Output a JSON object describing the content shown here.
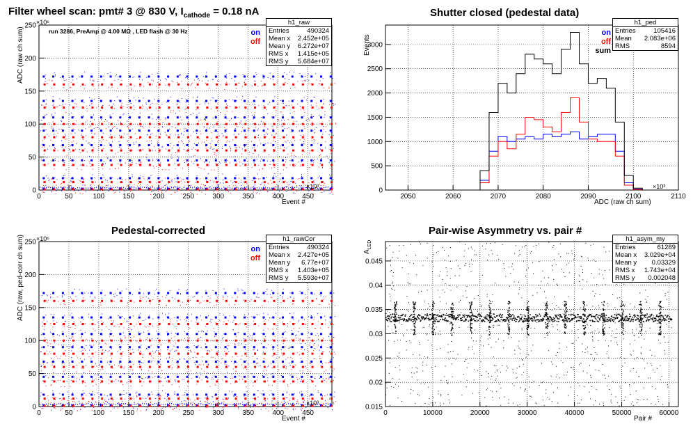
{
  "chart_data": [
    {
      "type": "scatter",
      "title": "Filter wheel scan: pmt#   3 @   830 V, I",
      "title_sub": "cathode",
      "title_tail": "  = 0.18 nA",
      "note": "run 3286, PreAmp @ 4.00 MΩ , LED flash @   30 Hz",
      "xlabel": "Event #",
      "ylabel": "ADC (raw ch sum)",
      "x_exponent": "×10³",
      "y_exponent": "×10⁶",
      "xlim": [
        0,
        490
      ],
      "ylim": [
        0,
        250
      ],
      "x_ticks": [
        "0",
        "50",
        "100",
        "150",
        "200",
        "250",
        "300",
        "350",
        "400",
        "450"
      ],
      "y_ticks": [
        "0",
        "50",
        "100",
        "150",
        "200",
        "250"
      ],
      "legend": [
        {
          "label": "on",
          "color": "#0000ff"
        },
        {
          "label": "off",
          "color": "#ff0000"
        }
      ],
      "series": [
        {
          "name": "on",
          "color": "#0000ff",
          "levels": [
            172,
            135,
            110,
            90,
            68,
            45,
            18,
            2
          ]
        },
        {
          "name": "off",
          "color": "#ff0000",
          "levels": [
            160,
            125,
            100,
            80,
            60,
            38,
            12,
            1
          ]
        }
      ],
      "stats": {
        "name": "h1_raw",
        "rows": [
          [
            "Entries",
            "490324"
          ],
          [
            "Mean x",
            "2.452e+05"
          ],
          [
            "Mean y",
            "6.272e+07"
          ],
          [
            "RMS x",
            "1.415e+05"
          ],
          [
            "RMS y",
            "5.684e+07"
          ]
        ]
      }
    },
    {
      "type": "line",
      "title": "Shutter closed (pedestal data)",
      "xlabel": "ADC (raw ch sum)",
      "ylabel": "Events",
      "x_exponent": "×10³",
      "xlim": [
        2045,
        2110
      ],
      "ylim": [
        0,
        3400
      ],
      "x_ticks": [
        "2050",
        "2060",
        "2070",
        "2080",
        "2090",
        "2100",
        "2110"
      ],
      "y_ticks": [
        "0",
        "500",
        "1000",
        "1500",
        "2000",
        "2500",
        "3000"
      ],
      "legend": [
        {
          "label": "on",
          "color": "#0000ff"
        },
        {
          "label": "off",
          "color": "#ff0000"
        },
        {
          "label": "sum",
          "color": "#000000"
        }
      ],
      "x": [
        2064,
        2066,
        2068,
        2070,
        2072,
        2074,
        2076,
        2078,
        2080,
        2082,
        2084,
        2086,
        2088,
        2090,
        2092,
        2094,
        2096,
        2098,
        2100,
        2102
      ],
      "series": [
        {
          "name": "sum",
          "color": "#000000",
          "values": [
            0,
            400,
            1600,
            2200,
            2000,
            2400,
            2800,
            2700,
            2600,
            2400,
            2900,
            3250,
            2600,
            2200,
            2300,
            2100,
            1400,
            300,
            40,
            0
          ]
        },
        {
          "name": "on",
          "color": "#0000ff",
          "values": [
            0,
            200,
            800,
            1100,
            1000,
            1050,
            1100,
            1050,
            1150,
            1100,
            1150,
            1200,
            1050,
            1100,
            1150,
            1150,
            800,
            150,
            20,
            0
          ]
        },
        {
          "name": "off",
          "color": "#ff0000",
          "values": [
            0,
            150,
            700,
            1000,
            850,
            1150,
            1500,
            1450,
            1300,
            1200,
            1600,
            1900,
            1400,
            1050,
            1000,
            1000,
            700,
            100,
            10,
            0
          ]
        }
      ],
      "stats": {
        "name": "h1_ped",
        "rows": [
          [
            "Entries",
            "105416"
          ],
          [
            "Mean",
            "2.083e+06"
          ],
          [
            "RMS",
            "8594"
          ]
        ]
      }
    },
    {
      "type": "scatter",
      "title": "Pedestal-corrected",
      "xlabel": "Event #",
      "ylabel": "ADC (raw, ped-corr ch sum)",
      "x_exponent": "×10³",
      "y_exponent": "×10⁶",
      "xlim": [
        0,
        490
      ],
      "ylim": [
        0,
        250
      ],
      "x_ticks": [
        "0",
        "50",
        "100",
        "150",
        "200",
        "250",
        "300",
        "350",
        "400",
        "450"
      ],
      "y_ticks": [
        "0",
        "50",
        "100",
        "150",
        "200",
        "250"
      ],
      "legend": [
        {
          "label": "on",
          "color": "#0000ff"
        },
        {
          "label": "off",
          "color": "#ff0000"
        }
      ],
      "series": [
        {
          "name": "on",
          "color": "#0000ff",
          "levels": [
            172,
            135,
            110,
            90,
            68,
            45,
            18,
            2
          ]
        },
        {
          "name": "off",
          "color": "#ff0000",
          "levels": [
            160,
            125,
            100,
            80,
            60,
            38,
            12,
            1
          ]
        }
      ],
      "stats": {
        "name": "h1_rawCor",
        "rows": [
          [
            "Entries",
            "490324"
          ],
          [
            "Mean x",
            "2.427e+05"
          ],
          [
            "Mean y",
            "6.77e+07"
          ],
          [
            "RMS x",
            "1.403e+05"
          ],
          [
            "RMS y",
            "5.593e+07"
          ]
        ]
      }
    },
    {
      "type": "scatter",
      "title": "Pair-wise Asymmetry vs. pair #",
      "xlabel": "Pair #",
      "ylabel": "A",
      "ylabel_sub": "LED",
      "xlim": [
        0,
        62000
      ],
      "ylim": [
        0.015,
        0.049
      ],
      "x_ticks": [
        "0",
        "10000",
        "20000",
        "30000",
        "40000",
        "50000",
        "60000"
      ],
      "y_ticks": [
        "0.015",
        "0.02",
        "0.025",
        "0.03",
        "0.035",
        "0.04",
        "0.045"
      ],
      "series": [
        {
          "name": "",
          "color": "#000000",
          "band_center": 0.0333,
          "band_halfwidth": 0.0008,
          "spike_spacing": 4000,
          "spike_height": 0.0035
        }
      ],
      "stats": {
        "name": "h1_asym_my",
        "rows": [
          [
            "Entries",
            "61289"
          ],
          [
            "Mean x",
            "3.029e+04"
          ],
          [
            "Mean y",
            "0.03329"
          ],
          [
            "RMS x",
            "1.743e+04"
          ],
          [
            "RMS y",
            "0.002048"
          ]
        ]
      }
    }
  ]
}
